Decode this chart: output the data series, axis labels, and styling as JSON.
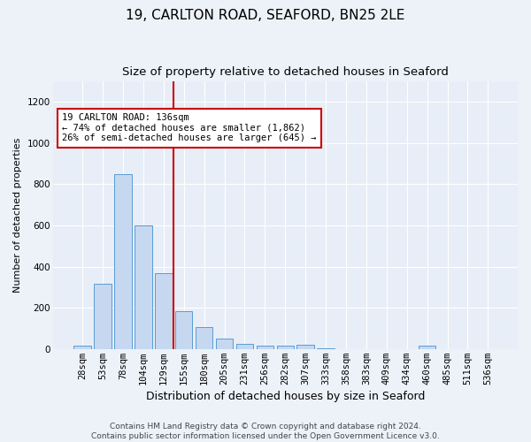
{
  "title": "19, CARLTON ROAD, SEAFORD, BN25 2LE",
  "subtitle": "Size of property relative to detached houses in Seaford",
  "xlabel": "Distribution of detached houses by size in Seaford",
  "ylabel": "Number of detached properties",
  "categories": [
    "28sqm",
    "53sqm",
    "78sqm",
    "104sqm",
    "129sqm",
    "155sqm",
    "180sqm",
    "205sqm",
    "231sqm",
    "256sqm",
    "282sqm",
    "307sqm",
    "333sqm",
    "358sqm",
    "383sqm",
    "409sqm",
    "434sqm",
    "460sqm",
    "485sqm",
    "511sqm",
    "536sqm"
  ],
  "values": [
    15,
    315,
    850,
    600,
    370,
    185,
    105,
    50,
    25,
    18,
    18,
    20,
    5,
    0,
    0,
    0,
    0,
    15,
    0,
    0,
    0
  ],
  "bar_color": "#c5d8f0",
  "bar_edge_color": "#5b9bd5",
  "property_line_x": 4.5,
  "property_line_color": "#cc0000",
  "annotation_line1": "19 CARLTON ROAD: 136sqm",
  "annotation_line2": "← 74% of detached houses are smaller (1,862)",
  "annotation_line3": "26% of semi-detached houses are larger (645) →",
  "annotation_box_color": "#cc0000",
  "ylim": [
    0,
    1300
  ],
  "yticks": [
    0,
    200,
    400,
    600,
    800,
    1000,
    1200
  ],
  "fig_bg_color": "#edf2f9",
  "ax_bg_color": "#e8eef7",
  "grid_color": "#ffffff",
  "footer_text": "Contains HM Land Registry data © Crown copyright and database right 2024.\nContains public sector information licensed under the Open Government Licence v3.0.",
  "title_fontsize": 11,
  "subtitle_fontsize": 9.5,
  "ylabel_fontsize": 8,
  "xlabel_fontsize": 9,
  "tick_fontsize": 7.5,
  "footer_fontsize": 6.5
}
